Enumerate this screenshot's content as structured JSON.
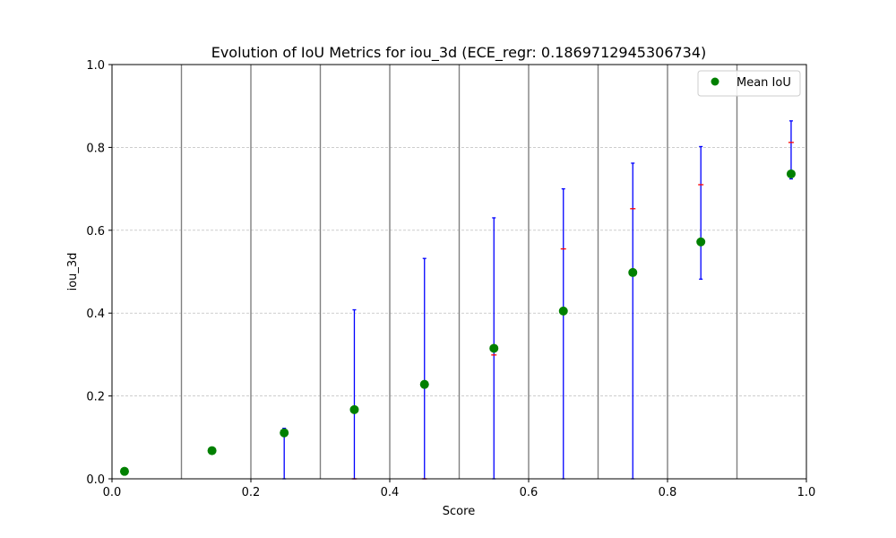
{
  "chart_data": {
    "type": "scatter",
    "title": "Evolution of IoU Metrics for iou_3d (ECE_regr: 0.1869712945306734)",
    "xlabel": "Score",
    "ylabel": "iou_3d",
    "xlim": [
      0.0,
      1.0
    ],
    "ylim": [
      0.0,
      1.0
    ],
    "xticks": [
      "0.0",
      "0.2",
      "0.4",
      "0.6",
      "0.8",
      "1.0"
    ],
    "yticks": [
      "0.0",
      "0.2",
      "0.4",
      "0.6",
      "0.8",
      "1.0"
    ],
    "horizontal_grid": true,
    "bin_edges": [
      0.1,
      0.2,
      0.3,
      0.4,
      0.5,
      0.6,
      0.7,
      0.8,
      0.9
    ],
    "legend": {
      "position": "top-right",
      "entries": [
        {
          "label": "Mean IoU",
          "color": "#008000"
        }
      ]
    },
    "series": [
      {
        "name": "Mean IoU",
        "color": "#008000",
        "points": [
          {
            "x": 0.018,
            "y": 0.018
          },
          {
            "x": 0.144,
            "y": 0.068
          },
          {
            "x": 0.248,
            "y": 0.111
          },
          {
            "x": 0.349,
            "y": 0.167
          },
          {
            "x": 0.45,
            "y": 0.228
          },
          {
            "x": 0.55,
            "y": 0.315
          },
          {
            "x": 0.65,
            "y": 0.405
          },
          {
            "x": 0.75,
            "y": 0.498
          },
          {
            "x": 0.848,
            "y": 0.572
          },
          {
            "x": 0.978,
            "y": 0.736
          }
        ]
      }
    ],
    "error_bars": [
      {
        "x": 0.248,
        "low": 0.0,
        "high": 0.122,
        "median": 0.115
      },
      {
        "x": 0.349,
        "low": 0.0,
        "high": 0.408,
        "median": 0.0
      },
      {
        "x": 0.45,
        "low": 0.0,
        "high": 0.532,
        "median": 0.0
      },
      {
        "x": 0.55,
        "low": 0.0,
        "high": 0.63,
        "median": 0.299
      },
      {
        "x": 0.65,
        "low": 0.0,
        "high": 0.7,
        "median": 0.555
      },
      {
        "x": 0.75,
        "low": 0.0,
        "high": 0.762,
        "median": 0.652
      },
      {
        "x": 0.848,
        "low": 0.482,
        "high": 0.802,
        "median": 0.71
      },
      {
        "x": 0.978,
        "low": 0.724,
        "high": 0.864,
        "median": 0.812
      }
    ],
    "colors": {
      "points": "#008000",
      "error_bar": "#0000ff",
      "median_marker": "#ff0000",
      "bin_line": "#808080",
      "grid": "#b0b0b0"
    }
  }
}
